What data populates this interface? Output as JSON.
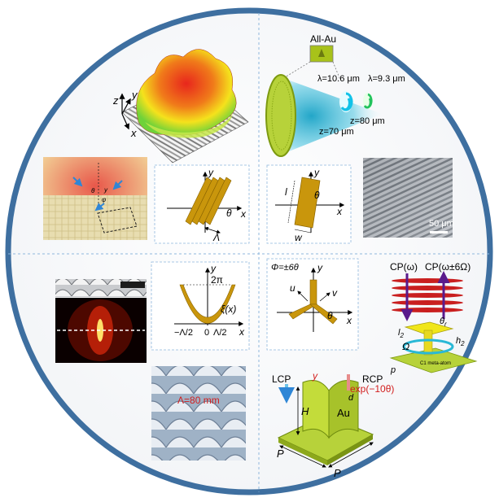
{
  "colors": {
    "ring": "#3e6fa0",
    "gold": "#c9960c",
    "gold_edge": "#8a6400",
    "olive": "#a8c21a",
    "panel_border": "#8fb7dd",
    "arrow_purple": "#5a1a8c",
    "red_text": "#d21e1e"
  },
  "top_right": {
    "all_au": "All-Au",
    "lambda1": "λ=10.6 μm",
    "lambda2": "λ=9.3 μm",
    "z80": "z=80 μm",
    "z70": "z=70 μm"
  },
  "top_left": {
    "axis_z": "z",
    "axis_y": "y",
    "axis_x": "x"
  },
  "mid_left_small": {
    "theta": "θ",
    "y": "y",
    "phi": "φ"
  },
  "grating": {
    "y": "y",
    "x": "x",
    "theta": "θ",
    "Lambda": "Λ"
  },
  "rotated_rect": {
    "y": "y",
    "x": "x",
    "l": "l",
    "w": "w",
    "theta": "θ"
  },
  "sem_top": {
    "scale": "50 μm"
  },
  "profile": {
    "y": "y",
    "two_pi": "2π",
    "xi": "ξ(x)",
    "neg": "−Λ/2",
    "zero": "0",
    "pos": "Λ/2",
    "x": "x"
  },
  "trimer": {
    "phi": "Φ=±6θ",
    "y": "y",
    "u": "u",
    "v": "v",
    "theta": "θ",
    "x": "x"
  },
  "spin": {
    "cp1": "CP(ω)",
    "cp2": "CP(ω±6Ω)",
    "l2": "l",
    "l2_sub": "2",
    "theta_r": "θ",
    "theta_r_sub": "r",
    "h2": "h",
    "h2_sub": "2",
    "omega": "Ω",
    "p": "p",
    "base": "C1 meta-atom"
  },
  "sem_bottom": {
    "label": "Λ=80 mm"
  },
  "au_meta": {
    "lcp": "LCP",
    "y": "y",
    "rcp": "RCP",
    "exp": "exp(−10θ)",
    "d": "d",
    "au": "Au",
    "H": "H",
    "P1": "P",
    "P2": "P"
  }
}
